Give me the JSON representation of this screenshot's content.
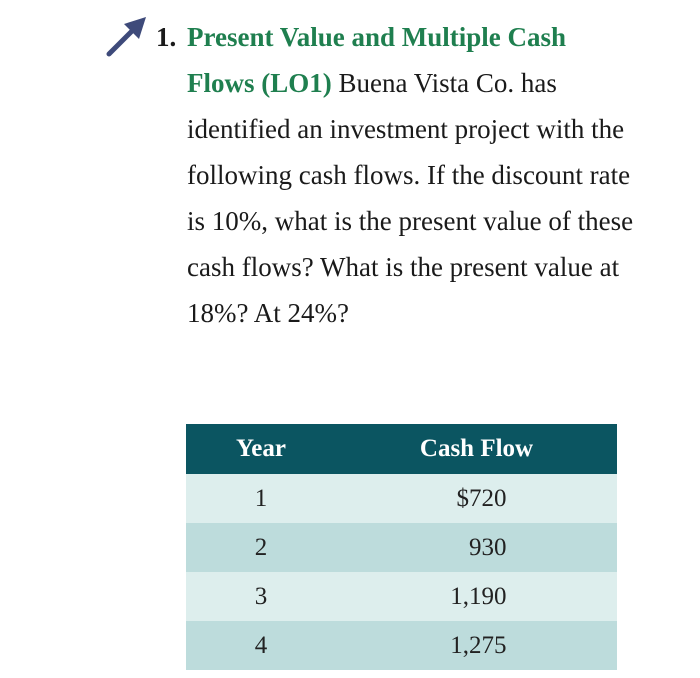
{
  "problem": {
    "number": "1.",
    "title": "Present Value and Multiple Cash Flows (LO1)",
    "body": " Buena Vista Co. has identified an investment project with the following cash flows. If the discount rate is 10%, what is the present value of these cash flows? What is the present value at 18%? At 24%?",
    "icon": "arrow-up-right-icon"
  },
  "colors": {
    "title": "#1f7f4f",
    "table_header": "#0b5561",
    "row_light": "#ddeeed",
    "row_dark": "#bddcdc",
    "icon": "#3e4a7a"
  },
  "table": {
    "headers": [
      "Year",
      "Cash Flow"
    ],
    "rows": [
      {
        "year": "1",
        "cash_flow": "$720"
      },
      {
        "year": "2",
        "cash_flow": "930"
      },
      {
        "year": "3",
        "cash_flow": "1,190"
      },
      {
        "year": "4",
        "cash_flow": "1,275"
      }
    ]
  }
}
